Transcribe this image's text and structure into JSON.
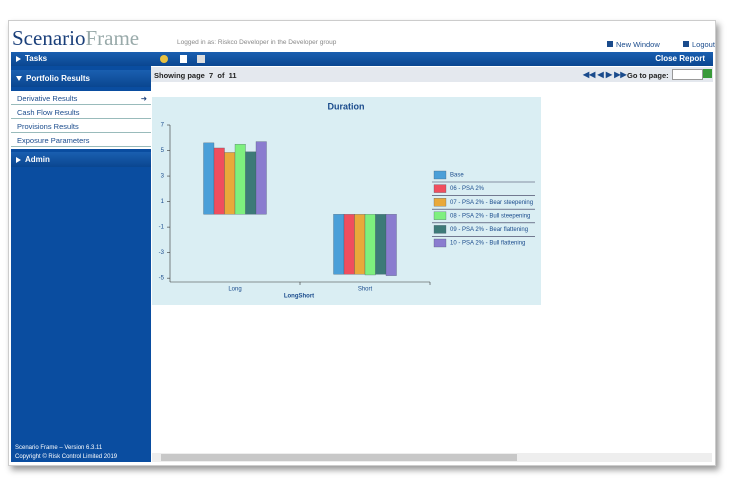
{
  "header": {
    "logo_main": "Scenario",
    "logo_second": "Frame",
    "login_text": "Logged in as: Riskco Developer in the Developer group",
    "new_window": "New Window",
    "logout": "Logout"
  },
  "sidebar": {
    "tasks": "Tasks",
    "portfolio_results": "Portfolio Results",
    "menu": [
      "Derivative Results",
      "Cash Flow Results",
      "Provisions Results",
      "Exposure Parameters"
    ],
    "admin": "Admin",
    "version": "Scenario Frame – Version 6.3.11",
    "copyright": "Copyright © Risk Control Limited 2019"
  },
  "toolbar": {
    "close_report": "Close Report"
  },
  "pager": {
    "showing": "Showing page",
    "page": 7,
    "of": "of",
    "total": 11,
    "go_to": "Go to page:"
  },
  "chart_data": {
    "type": "bar",
    "title": "Duration",
    "x_label": "LongShort",
    "categories": [
      "Long",
      "Short"
    ],
    "series": [
      {
        "name": "Base",
        "color": "#4a9fd8",
        "values": [
          5.6,
          -4.7
        ]
      },
      {
        "name": "06  - PSA 2%",
        "color": "#f04e5e",
        "values": [
          5.2,
          -4.7
        ]
      },
      {
        "name": "07  - PSA 2% - Bear steepening",
        "color": "#e9a93a",
        "values": [
          4.85,
          -4.7
        ]
      },
      {
        "name": "08  - PSA 2% - Bull steepening",
        "color": "#7ef07e",
        "values": [
          5.5,
          -4.75
        ]
      },
      {
        "name": "09  - PSA 2% - Bear flattening",
        "color": "#3d7a78",
        "values": [
          4.9,
          -4.7
        ]
      },
      {
        "name": "10  - PSA 2% - Bull flattening",
        "color": "#8a7ccf",
        "values": [
          5.7,
          -4.8
        ]
      }
    ],
    "ylim": [
      -5.3,
      7
    ],
    "yticks": [
      -5,
      -3,
      -1,
      1,
      3,
      5,
      7
    ],
    "grid": false
  }
}
